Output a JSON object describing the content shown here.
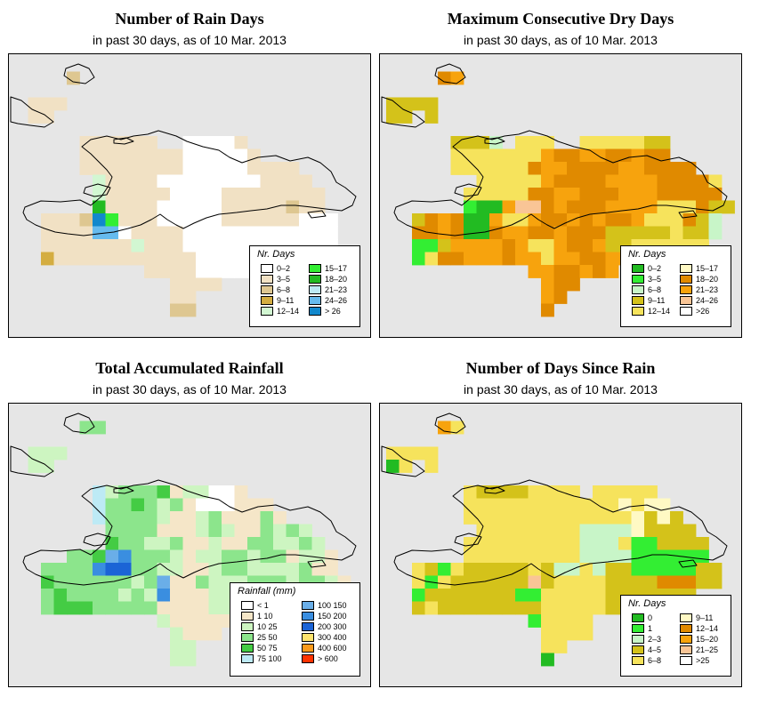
{
  "panels": [
    {
      "id": "rain-days",
      "title": "Number of Rain Days",
      "subtitle": "in past 30 days, as of  10 Mar. 2013",
      "legend_title": "Nr. Days",
      "legend": [
        {
          "label": "0–2",
          "color": "#ffffff"
        },
        {
          "label": "3–5",
          "color": "#f1e1c4"
        },
        {
          "label": "6–8",
          "color": "#dec791"
        },
        {
          "label": "9–11",
          "color": "#d4ad41"
        },
        {
          "label": "12–14",
          "color": "#d2f7d2"
        },
        {
          "label": "15–17",
          "color": "#33ee33"
        },
        {
          "label": "18–20",
          "color": "#22bb22"
        },
        {
          "label": "21–23",
          "color": "#bdeaf5"
        },
        {
          "label": "24–26",
          "color": "#66bbee"
        },
        {
          "label": "> 26",
          "color": "#1188cc"
        }
      ],
      "grid": [
        "...........................",
        "....C......................",
        "...........................",
        ".BBB.......................",
        ".BB........................",
        "...........................",
        ".....BBBBBB..AAAAB.........",
        ".....BBBBBBBBAAAAAB........",
        ".....BBBBBBBBAAAAABBBB.....",
        "......EBBBBAAAAAAAABBBB....",
        "......EBBBBBAAAABBBBBBBB...",
        "......GBBBBAAAAABBBBBCBB...",
        "..BBBCJFBBBAAAAABBBBBBAAA..",
        "..BBBBIIABBBBAAAAAAAAAAAA..",
        "..BBBBBBBEBBBAAAAAAAAAAAA..",
        "..DBBBBBBBBBBBAAAAAAAA.....",
        "..........BBBBAAAAAA.......",
        "............BBBB...........",
        "............BB.............",
        "............CC............."
      ]
    },
    {
      "id": "max-dry-days",
      "title": "Maximum Consecutive Dry Days",
      "subtitle": "in past 30 days, as of  10 Mar. 2013",
      "legend_title": "Nr. Days",
      "legend": [
        {
          "label": "0–2",
          "color": "#22bb22"
        },
        {
          "label": "3–5",
          "color": "#33ee33"
        },
        {
          "label": "6–8",
          "color": "#c8f5c8"
        },
        {
          "label": "9–11",
          "color": "#d4c21a"
        },
        {
          "label": "12–14",
          "color": "#f6e35c"
        },
        {
          "label": "15–17",
          "color": "#fff9c4"
        },
        {
          "label": "18–20",
          "color": "#e08a00"
        },
        {
          "label": "21–23",
          "color": "#f7a30d"
        },
        {
          "label": "24–26",
          "color": "#f9c596"
        },
        {
          "label": ">26",
          "color": "#ffffff"
        }
      ],
      "grid": [
        "...........................",
        "....GH.....................",
        "...........................",
        "DDDD.......................",
        "DD.D.......................",
        "...........................",
        ".....DDDC.EEE..EEEEEDD.....",
        ".....EEEEEEEHGGHHGGHGG.....",
        ".....EEEEEEGHHGGGGHHGGGG...",
        ".......EEEEEHGGGGHHHHGGGGE.",
        "......EEEEEGGHHGGGHHHGGGGG.",
        "......BAAHIIGHGGGHHHHEEEGDD",
        "..DGHGAAHEEHGGHGHGGHEEEGDC.",
        "..GGHGAAGHHGGHGGGDDDDDEDDC.",
        "..BBDHHHHGHEEHGGHDDEEEEEE..",
        "..BEGGHHHGHHEHHGGHHHGE.....",
        "...........HHGGHGH.........",
        "............HGG............",
        "............HG.............",
        "............G.............."
      ]
    },
    {
      "id": "total-rainfall",
      "title": "Total Accumulated Rainfall",
      "subtitle": "in past 30 days, as of  10 Mar. 2013",
      "legend_title": "Rainfall (mm)",
      "legend": [
        {
          "label": "< 1",
          "color": "#ffffff"
        },
        {
          "label": "1    10",
          "color": "#f5e6c8"
        },
        {
          "label": "10    25",
          "color": "#cdf5c1"
        },
        {
          "label": "25    50",
          "color": "#8ce58c"
        },
        {
          "label": "50    75",
          "color": "#44cc44"
        },
        {
          "label": "75    100",
          "color": "#bdeaf5"
        },
        {
          "label": "100   150",
          "color": "#6aaee8"
        },
        {
          "label": "150   200",
          "color": "#3a8ee0"
        },
        {
          "label": "200   300",
          "color": "#1b64d6"
        },
        {
          "label": "300   400",
          "color": "#fde36d"
        },
        {
          "label": "400   600",
          "color": "#fb9a1b"
        },
        {
          "label": "> 600",
          "color": "#ff3300"
        }
      ],
      "grid": [
        "...........................",
        ".....DD....................",
        "...........................",
        ".CCC.......................",
        ".CC........................",
        "...........................",
        "......FCDDDEBCCAAB.........",
        "......FDDEDCDBAAABBB.......",
        "......FDDDDCBBCDBBBDB......",
        ".......DDDDBBBCDCBBDCDC....",
        ".......EDDCCDBBCBBDDCCDC...",
        "....DDEGHDDDCBCCDDCDDBCCB..",
        "..DDDDHIIDDCCBBCDDCCCCDBB..",
        "..EDDDDDDCDGBBDCCCDDDCDDCB.",
        "..DEDDDDCDCHBBBCCCDCCCC....",
        "..DEEEDDDDDBBBBCCDDD.......",
        "...........CBBBBBB.........",
        "............CBBB...........",
        "............CC.............",
        "............CC............."
      ]
    },
    {
      "id": "days-since-rain",
      "title": "Number of Days Since Rain",
      "subtitle": "in past 30 days, as of  10 Mar. 2013",
      "legend_title": "Nr. Days",
      "legend": [
        {
          "label": "0",
          "color": "#22bb22"
        },
        {
          "label": "1",
          "color": "#33ee33"
        },
        {
          "label": "2–3",
          "color": "#c8f5c8"
        },
        {
          "label": "4–5",
          "color": "#d4c21a"
        },
        {
          "label": "6–8",
          "color": "#f6e35c"
        },
        {
          "label": "9–11",
          "color": "#fff9c4"
        },
        {
          "label": "12–14",
          "color": "#e08a00"
        },
        {
          "label": "15–20",
          "color": "#f7a30d"
        },
        {
          "label": "21–25",
          "color": "#f9c596"
        },
        {
          "label": ">25",
          "color": "#ffffff"
        }
      ],
      "grid": [
        "...........................",
        "....HE.....................",
        "...........................",
        "EEEE.......................",
        "AE.E.......................",
        "...........................",
        "......EDDDDEEEE.EEEEE......",
        "......EEEEEEEEEEEEFEFF.....",
        "......EEEEEEEEEEEEEFDFD....",
        ".......EEEEEEEECCCCFDDDD...",
        "......EEEEEEEEECCCEBBDDDD..",
        "......EEEEEEEEECCCCBBBBBB..",
        "..EDBEDDDDDEDCCECDDBBBBBDD.",
        "..EBEDDDDDDIDEEEEDDDDGGGDD.",
        "..BDDDDDDDBBEEEEEDDDDDDD...",
        "..DEDDDDDDDDEEEEEDDDD......",
        "...........BEEEE...........",
        "............EEEE...........",
        "............EE.............",
        "............A.............."
      ]
    }
  ]
}
